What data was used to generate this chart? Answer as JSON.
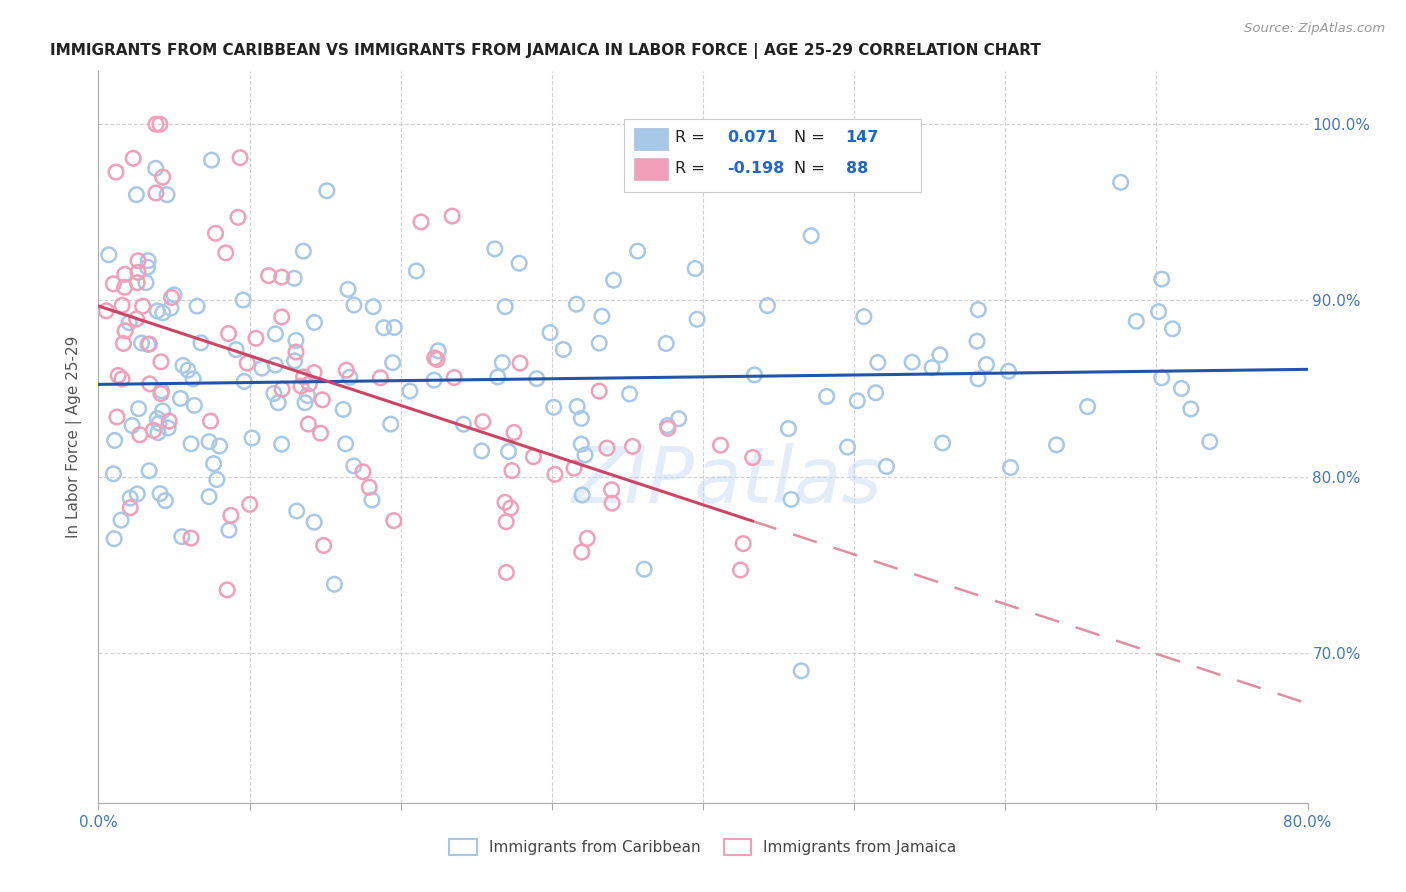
{
  "title": "IMMIGRANTS FROM CARIBBEAN VS IMMIGRANTS FROM JAMAICA IN LABOR FORCE | AGE 25-29 CORRELATION CHART",
  "source": "Source: ZipAtlas.com",
  "ylabel": "In Labor Force | Age 25-29",
  "y_tick_labels": [
    "70.0%",
    "80.0%",
    "90.0%",
    "100.0%"
  ],
  "y_ticks": [
    0.7,
    0.8,
    0.9,
    1.0
  ],
  "R_caribbean": 0.071,
  "N_caribbean": 147,
  "R_jamaica": -0.198,
  "N_jamaica": 88,
  "color_caribbean": "#a8c8e8",
  "color_jamaica": "#f0a0b8",
  "line_color_caribbean": "#2255aa",
  "line_color_jamaica": "#cc4466",
  "watermark": "ZIPatlas",
  "legend_label_caribbean": "Immigrants from Caribbean",
  "legend_label_jamaica": "Immigrants from Jamaica",
  "xlim": [
    0.0,
    0.8
  ],
  "ylim": [
    0.615,
    1.03
  ]
}
